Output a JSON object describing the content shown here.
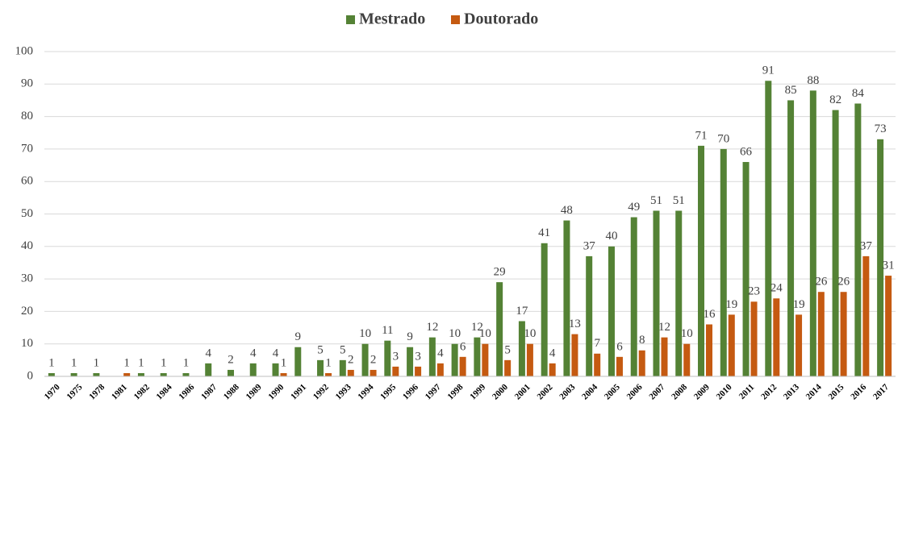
{
  "chart_data": {
    "type": "bar",
    "categories": [
      "1970",
      "1975",
      "1978",
      "1981",
      "1982",
      "1984",
      "1986",
      "1987",
      "1988",
      "1989",
      "1990",
      "1991",
      "1992",
      "1993",
      "1994",
      "1995",
      "1996",
      "1997",
      "1998",
      "1999",
      "2000",
      "2001",
      "2002",
      "2003",
      "2004",
      "2005",
      "2006",
      "2007",
      "2008",
      "2009",
      "2010",
      "2011",
      "2012",
      "2013",
      "2014",
      "2015",
      "2016",
      "2017"
    ],
    "series": [
      {
        "name": "Mestrado",
        "color": "#548235",
        "values": [
          1,
          1,
          1,
          null,
          1,
          1,
          1,
          4,
          2,
          4,
          4,
          9,
          5,
          5,
          10,
          11,
          9,
          12,
          10,
          12,
          29,
          17,
          41,
          48,
          37,
          40,
          49,
          51,
          51,
          71,
          70,
          66,
          91,
          85,
          88,
          82,
          84,
          73
        ]
      },
      {
        "name": "Doutorado",
        "color": "#c55a11",
        "values": [
          null,
          null,
          null,
          1,
          null,
          null,
          null,
          null,
          null,
          null,
          1,
          null,
          1,
          2,
          2,
          3,
          3,
          4,
          6,
          10,
          5,
          10,
          4,
          13,
          7,
          6,
          8,
          12,
          10,
          16,
          19,
          23,
          24,
          19,
          26,
          26,
          37,
          31
        ]
      }
    ],
    "ylim": [
      0,
      100
    ],
    "yticks": [
      0,
      10,
      20,
      30,
      40,
      50,
      60,
      70,
      80,
      90,
      100
    ],
    "grid": true,
    "legend": "top"
  }
}
